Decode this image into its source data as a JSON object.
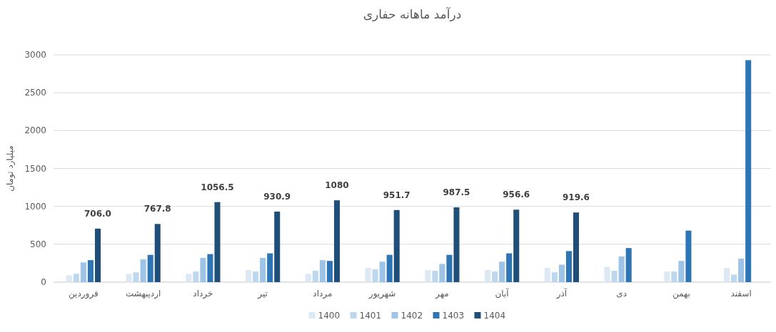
{
  "chart_data": {
    "type": "bar",
    "title": "درآمد ماهانه حفاری",
    "ylabel": "میلیارد تومان",
    "categories": [
      "فروردین",
      "اردیبهشت",
      "خرداد",
      "تیر",
      "مرداد",
      "شهریور",
      "مهر",
      "آبان",
      "آذر",
      "دی",
      "بهمن",
      "اسفند"
    ],
    "series": [
      {
        "name": "1400",
        "color": "#dde8f5",
        "values": [
          90,
          110,
          110,
          160,
          110,
          190,
          160,
          160,
          190,
          200,
          140,
          190
        ]
      },
      {
        "name": "1401",
        "color": "#bdd7ee",
        "values": [
          110,
          130,
          140,
          140,
          150,
          170,
          150,
          140,
          130,
          150,
          140,
          100
        ]
      },
      {
        "name": "1402",
        "color": "#9dc3e6",
        "values": [
          260,
          300,
          320,
          320,
          290,
          270,
          240,
          270,
          230,
          340,
          280,
          310
        ]
      },
      {
        "name": "1403",
        "color": "#2e75b6",
        "values": [
          290,
          360,
          370,
          380,
          280,
          360,
          360,
          380,
          410,
          450,
          680,
          2930
        ]
      },
      {
        "name": "1404",
        "color": "#1f4e79",
        "values": [
          706.0,
          767.8,
          1056.5,
          930.9,
          1080,
          951.7,
          987.5,
          956.6,
          919.6,
          null,
          null,
          null
        ],
        "value_labels": [
          "706.0",
          "767.8",
          "1056.5",
          "930.9",
          "1080",
          "951.7",
          "987.5",
          "956.6",
          "919.6",
          null,
          null,
          null
        ]
      }
    ],
    "ylim": [
      0,
      3000
    ],
    "yticks": [
      0,
      500,
      1000,
      1500,
      2000,
      2500,
      3000
    ],
    "grid": "y",
    "legend": "bottom"
  }
}
